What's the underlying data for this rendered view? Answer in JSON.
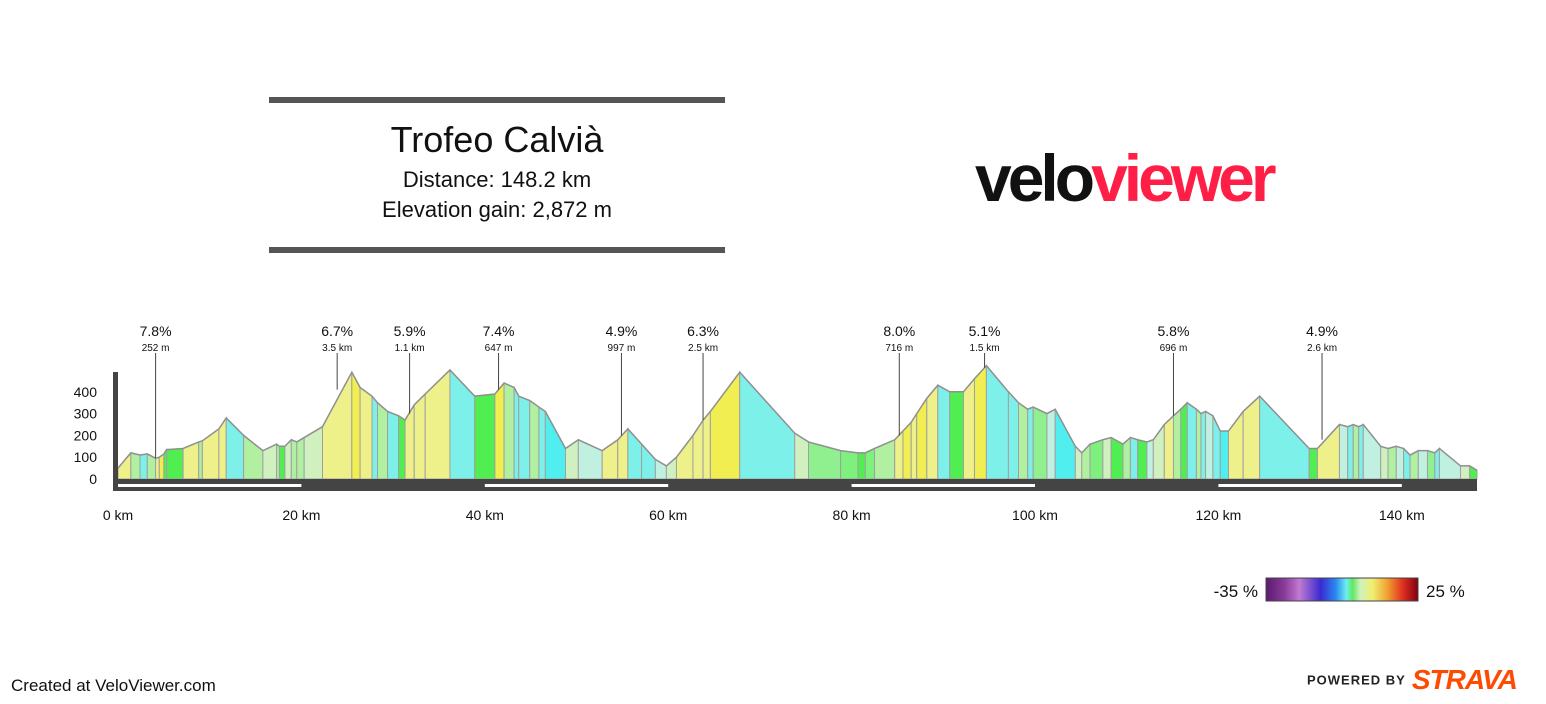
{
  "header": {
    "title": "Trofeo Calvià",
    "distance": "Distance: 148.2 km",
    "elevation_gain": "Elevation gain: 2,872 m"
  },
  "logo": {
    "part1": "velo",
    "part2": "viewer",
    "color_dark": "#111111",
    "color_brand": "#ff1e46"
  },
  "footer": {
    "credit": "Created at VeloViewer.com",
    "powered_by": "POWERED BY",
    "strava": "STRAVA",
    "strava_color": "#fc4c02"
  },
  "legend": {
    "min_label": "-35 %",
    "max_label": "25 %",
    "gradient_colors": [
      "#5a1a6e",
      "#8a3a9a",
      "#c07ad0",
      "#3a2ad0",
      "#2a8af0",
      "#6ef0f0",
      "#60e860",
      "#f0f070",
      "#f0a030",
      "#e03020",
      "#800010"
    ]
  },
  "chart_data": {
    "type": "area",
    "title": "Trofeo Calvià",
    "xlabel": "",
    "ylabel": "",
    "x_unit": "km",
    "y_unit": "m",
    "xlim": [
      0,
      148.2
    ],
    "ylim": [
      0,
      500
    ],
    "x_ticks": [
      0,
      20,
      40,
      60,
      80,
      100,
      120,
      140
    ],
    "x_tick_labels": [
      "0 km",
      "20 km",
      "40 km",
      "60 km",
      "80 km",
      "100 km",
      "120 km",
      "140 km"
    ],
    "y_ticks": [
      0,
      100,
      200,
      300,
      400
    ],
    "y_tick_labels": [
      "0",
      "100",
      "200",
      "300",
      "400"
    ],
    "profile": [
      {
        "x": 0.0,
        "y": 50,
        "c": "#eef08a"
      },
      {
        "x": 1.4,
        "y": 120,
        "c": "#b0f0a0"
      },
      {
        "x": 2.4,
        "y": 110,
        "c": "#7ef0ea"
      },
      {
        "x": 3.2,
        "y": 115,
        "c": "#b0f0a0"
      },
      {
        "x": 4.1,
        "y": 95,
        "c": "#eef08a"
      },
      {
        "x": 4.5,
        "y": 100,
        "c": "#f0ee50"
      },
      {
        "x": 5.0,
        "y": 115,
        "c": "#50ee50"
      },
      {
        "x": 5.3,
        "y": 135,
        "c": "#50ee50"
      },
      {
        "x": 7.1,
        "y": 140,
        "c": "#eef08a"
      },
      {
        "x": 8.8,
        "y": 170,
        "c": "#b0f0a0"
      },
      {
        "x": 9.2,
        "y": 175,
        "c": "#eef08a"
      },
      {
        "x": 11.0,
        "y": 230,
        "c": "#eef08a"
      },
      {
        "x": 11.8,
        "y": 280,
        "c": "#7ef0ea"
      },
      {
        "x": 13.7,
        "y": 200,
        "c": "#b0f0a0"
      },
      {
        "x": 15.8,
        "y": 130,
        "c": "#d0f0c0"
      },
      {
        "x": 17.3,
        "y": 160,
        "c": "#b0f0a0"
      },
      {
        "x": 17.6,
        "y": 150,
        "c": "#50ee50"
      },
      {
        "x": 18.2,
        "y": 150,
        "c": "#d0f0c0"
      },
      {
        "x": 18.9,
        "y": 180,
        "c": "#b0f0a0"
      },
      {
        "x": 19.5,
        "y": 170,
        "c": "#b0f0a0"
      },
      {
        "x": 20.3,
        "y": 190,
        "c": "#d0f0c0"
      },
      {
        "x": 22.3,
        "y": 240,
        "c": "#eef08a"
      },
      {
        "x": 25.5,
        "y": 490,
        "c": "#f0ee50"
      },
      {
        "x": 26.4,
        "y": 420,
        "c": "#eef08a"
      },
      {
        "x": 27.7,
        "y": 380,
        "c": "#7ef0ea"
      },
      {
        "x": 28.3,
        "y": 350,
        "c": "#b0f0a0"
      },
      {
        "x": 29.4,
        "y": 310,
        "c": "#7ef0ea"
      },
      {
        "x": 30.6,
        "y": 290,
        "c": "#50ee50"
      },
      {
        "x": 31.3,
        "y": 270,
        "c": "#eef08a"
      },
      {
        "x": 32.3,
        "y": 340,
        "c": "#eef08a"
      },
      {
        "x": 33.5,
        "y": 390,
        "c": "#eef08a"
      },
      {
        "x": 36.2,
        "y": 500,
        "c": "#7ef0ea"
      },
      {
        "x": 38.9,
        "y": 380,
        "c": "#50ee50"
      },
      {
        "x": 41.1,
        "y": 390,
        "c": "#f0ee50"
      },
      {
        "x": 42.1,
        "y": 440,
        "c": "#b0f0a0"
      },
      {
        "x": 43.2,
        "y": 420,
        "c": "#7ef0ea"
      },
      {
        "x": 43.7,
        "y": 380,
        "c": "#7ef0ea"
      },
      {
        "x": 44.9,
        "y": 360,
        "c": "#b0f0a0"
      },
      {
        "x": 45.9,
        "y": 330,
        "c": "#7ef0ea"
      },
      {
        "x": 46.6,
        "y": 310,
        "c": "#50eeee"
      },
      {
        "x": 48.8,
        "y": 140,
        "c": "#d0f0c0"
      },
      {
        "x": 50.2,
        "y": 180,
        "c": "#c0f0e0"
      },
      {
        "x": 52.8,
        "y": 130,
        "c": "#eef08a"
      },
      {
        "x": 54.5,
        "y": 180,
        "c": "#eef08a"
      },
      {
        "x": 55.6,
        "y": 230,
        "c": "#7ef0ea"
      },
      {
        "x": 57.1,
        "y": 160,
        "c": "#7ef0ea"
      },
      {
        "x": 58.6,
        "y": 90,
        "c": "#c0f0e0"
      },
      {
        "x": 59.8,
        "y": 60,
        "c": "#d0f0c0"
      },
      {
        "x": 60.9,
        "y": 100,
        "c": "#eef08a"
      },
      {
        "x": 62.7,
        "y": 200,
        "c": "#eef08a"
      },
      {
        "x": 63.8,
        "y": 270,
        "c": "#eef08a"
      },
      {
        "x": 64.6,
        "y": 310,
        "c": "#f0ee50"
      },
      {
        "x": 67.8,
        "y": 490,
        "c": "#7ef0ea"
      },
      {
        "x": 73.8,
        "y": 210,
        "c": "#d0f0c0"
      },
      {
        "x": 75.3,
        "y": 170,
        "c": "#90f090"
      },
      {
        "x": 78.8,
        "y": 130,
        "c": "#7ef07e"
      },
      {
        "x": 80.7,
        "y": 120,
        "c": "#50ee50"
      },
      {
        "x": 81.5,
        "y": 120,
        "c": "#7ef07e"
      },
      {
        "x": 82.5,
        "y": 140,
        "c": "#b0f0a0"
      },
      {
        "x": 84.7,
        "y": 180,
        "c": "#eef08a"
      },
      {
        "x": 85.6,
        "y": 220,
        "c": "#f0ee50"
      },
      {
        "x": 86.5,
        "y": 260,
        "c": "#eef08a"
      },
      {
        "x": 87.1,
        "y": 300,
        "c": "#f0ee50"
      },
      {
        "x": 88.2,
        "y": 370,
        "c": "#eef08a"
      },
      {
        "x": 89.4,
        "y": 430,
        "c": "#7ef0ea"
      },
      {
        "x": 90.7,
        "y": 400,
        "c": "#50ee50"
      },
      {
        "x": 92.2,
        "y": 400,
        "c": "#eef08a"
      },
      {
        "x": 93.4,
        "y": 460,
        "c": "#f0ee50"
      },
      {
        "x": 94.7,
        "y": 520,
        "c": "#7ef0ea"
      },
      {
        "x": 97.1,
        "y": 400,
        "c": "#7ef0ea"
      },
      {
        "x": 98.2,
        "y": 350,
        "c": "#b0f0a0"
      },
      {
        "x": 99.2,
        "y": 320,
        "c": "#7ef0ea"
      },
      {
        "x": 99.8,
        "y": 330,
        "c": "#90f090"
      },
      {
        "x": 101.3,
        "y": 300,
        "c": "#c0f0e0"
      },
      {
        "x": 102.2,
        "y": 320,
        "c": "#50eeee"
      },
      {
        "x": 104.4,
        "y": 150,
        "c": "#d0f0c0"
      },
      {
        "x": 105.1,
        "y": 120,
        "c": "#b0f0a0"
      },
      {
        "x": 106.0,
        "y": 160,
        "c": "#7ef07e"
      },
      {
        "x": 107.4,
        "y": 180,
        "c": "#d0f0c0"
      },
      {
        "x": 108.3,
        "y": 190,
        "c": "#50ee50"
      },
      {
        "x": 109.6,
        "y": 160,
        "c": "#b0f0a0"
      },
      {
        "x": 110.4,
        "y": 190,
        "c": "#7ef0ea"
      },
      {
        "x": 111.2,
        "y": 180,
        "c": "#50ee50"
      },
      {
        "x": 112.2,
        "y": 170,
        "c": "#c0f0e0"
      },
      {
        "x": 112.9,
        "y": 180,
        "c": "#d0f0c0"
      },
      {
        "x": 114.1,
        "y": 250,
        "c": "#eef08a"
      },
      {
        "x": 115.1,
        "y": 290,
        "c": "#b0f0a0"
      },
      {
        "x": 115.9,
        "y": 320,
        "c": "#50ee50"
      },
      {
        "x": 116.6,
        "y": 350,
        "c": "#7ef0ea"
      },
      {
        "x": 117.6,
        "y": 320,
        "c": "#b0f0a0"
      },
      {
        "x": 118.1,
        "y": 300,
        "c": "#7ef0ea"
      },
      {
        "x": 118.6,
        "y": 310,
        "c": "#c0f0e0"
      },
      {
        "x": 119.4,
        "y": 290,
        "c": "#7ef0ea"
      },
      {
        "x": 120.2,
        "y": 220,
        "c": "#50eeee"
      },
      {
        "x": 121.1,
        "y": 220,
        "c": "#eef08a"
      },
      {
        "x": 122.7,
        "y": 310,
        "c": "#eef08a"
      },
      {
        "x": 124.5,
        "y": 380,
        "c": "#7ef0ea"
      },
      {
        "x": 129.9,
        "y": 140,
        "c": "#50ee50"
      },
      {
        "x": 130.8,
        "y": 140,
        "c": "#eef08a"
      },
      {
        "x": 133.2,
        "y": 250,
        "c": "#c0f0e0"
      },
      {
        "x": 134.1,
        "y": 240,
        "c": "#7ef0ea"
      },
      {
        "x": 134.7,
        "y": 250,
        "c": "#b0f0a0"
      },
      {
        "x": 135.3,
        "y": 240,
        "c": "#7ef0ea"
      },
      {
        "x": 135.8,
        "y": 250,
        "c": "#c0f0e0"
      },
      {
        "x": 137.7,
        "y": 150,
        "c": "#d0f0c0"
      },
      {
        "x": 138.5,
        "y": 140,
        "c": "#b0f0a0"
      },
      {
        "x": 139.4,
        "y": 150,
        "c": "#c0f0e0"
      },
      {
        "x": 140.2,
        "y": 140,
        "c": "#7ef0ea"
      },
      {
        "x": 140.9,
        "y": 110,
        "c": "#b0f0a0"
      },
      {
        "x": 141.8,
        "y": 130,
        "c": "#c0f0e0"
      },
      {
        "x": 142.8,
        "y": 130,
        "c": "#90f090"
      },
      {
        "x": 143.6,
        "y": 120,
        "c": "#7ef0ea"
      },
      {
        "x": 144.1,
        "y": 140,
        "c": "#c0f0e0"
      },
      {
        "x": 146.4,
        "y": 60,
        "c": "#d0f0c0"
      },
      {
        "x": 147.4,
        "y": 60,
        "c": "#50ee50"
      },
      {
        "x": 148.2,
        "y": 40
      }
    ],
    "climb_annotations": [
      {
        "x": 4.1,
        "y": 95,
        "grade": "7.8%",
        "length": "252 m"
      },
      {
        "x": 23.9,
        "y": 410,
        "grade": "6.7%",
        "length": "3.5 km"
      },
      {
        "x": 31.8,
        "y": 300,
        "grade": "5.9%",
        "length": "1.1 km"
      },
      {
        "x": 41.5,
        "y": 410,
        "grade": "7.4%",
        "length": "647 m"
      },
      {
        "x": 54.9,
        "y": 200,
        "grade": "4.9%",
        "length": "997 m"
      },
      {
        "x": 63.8,
        "y": 270,
        "grade": "6.3%",
        "length": "2.5 km"
      },
      {
        "x": 85.2,
        "y": 200,
        "grade": "8.0%",
        "length": "716 m"
      },
      {
        "x": 94.5,
        "y": 510,
        "grade": "5.1%",
        "length": "1.5 km"
      },
      {
        "x": 115.1,
        "y": 290,
        "grade": "5.8%",
        "length": "696 m"
      },
      {
        "x": 131.3,
        "y": 180,
        "grade": "4.9%",
        "length": "2.6 km"
      }
    ]
  }
}
